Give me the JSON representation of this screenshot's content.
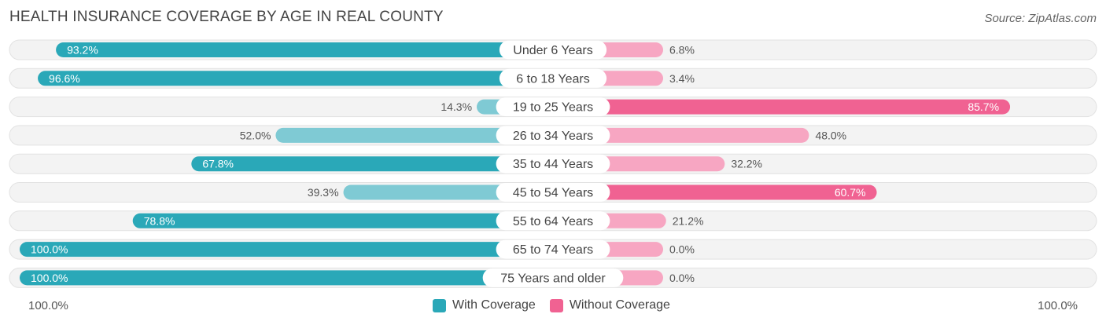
{
  "header": {
    "title": "HEALTH INSURANCE COVERAGE BY AGE IN REAL COUNTY",
    "source": "Source: ZipAtlas.com"
  },
  "axis": {
    "left_label": "100.0%",
    "right_label": "100.0%"
  },
  "legend": {
    "with_label": "With Coverage",
    "without_label": "Without Coverage"
  },
  "colors": {
    "with_strong": "#2aa8b8",
    "with_light": "#7fcad4",
    "without_strong": "#f06292",
    "without_light": "#f7a6c2",
    "track": "#efefef"
  },
  "chart_data": {
    "type": "bar",
    "orientation": "diverging-horizontal",
    "title": "HEALTH INSURANCE COVERAGE BY AGE IN REAL COUNTY",
    "xlim": [
      -100,
      100
    ],
    "categories": [
      "Under 6 Years",
      "6 to 18 Years",
      "19 to 25 Years",
      "26 to 34 Years",
      "35 to 44 Years",
      "45 to 54 Years",
      "55 to 64 Years",
      "65 to 74 Years",
      "75 Years and older"
    ],
    "series": [
      {
        "name": "With Coverage",
        "values": [
          93.2,
          96.6,
          14.3,
          52.0,
          67.8,
          39.3,
          78.8,
          100.0,
          100.0
        ],
        "labels": [
          "93.2%",
          "96.6%",
          "14.3%",
          "52.0%",
          "67.8%",
          "39.3%",
          "78.8%",
          "100.0%",
          "100.0%"
        ]
      },
      {
        "name": "Without Coverage",
        "values": [
          6.8,
          3.4,
          85.7,
          48.0,
          32.2,
          60.7,
          21.2,
          0.0,
          0.0
        ],
        "labels": [
          "6.8%",
          "3.4%",
          "85.7%",
          "48.0%",
          "32.2%",
          "60.7%",
          "21.2%",
          "0.0%",
          "0.0%"
        ]
      }
    ]
  }
}
